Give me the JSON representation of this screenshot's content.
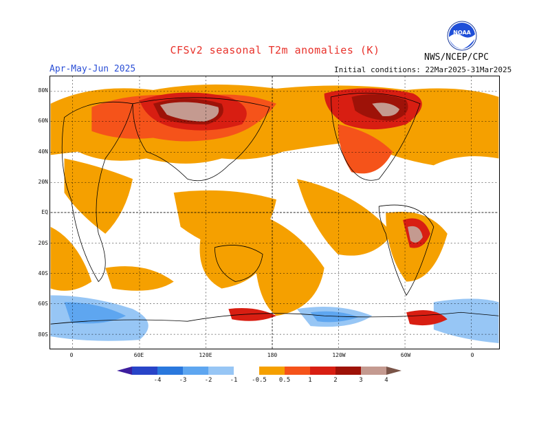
{
  "header": {
    "title": "CFSv2 seasonal T2m anomalies (K)",
    "period": "Apr-May-Jun 2025",
    "initial_conditions": "Initial conditions: 22Mar2025-31Mar2025",
    "agency": "NWS/NCEP/CPC",
    "logo_text": "NOAA",
    "logo_icon": "noaa-logo-icon"
  },
  "map": {
    "lat_labels": [
      "80N",
      "60N",
      "40N",
      "20N",
      "EQ",
      "20S",
      "40S",
      "60S",
      "80S"
    ],
    "lon_labels": [
      "0",
      "60E",
      "120E",
      "180",
      "120W",
      "60W",
      "0"
    ],
    "colors": {
      "pos_05": "#f5a000",
      "pos_1": "#f5531a",
      "pos_2": "#d81e12",
      "pos_3": "#9e1208",
      "pos_4": "#c49a90",
      "neg_05": "#97c6f5",
      "neg_1": "#5ea6f0",
      "neg_2": "#2a78dd"
    }
  },
  "legend": {
    "labels": [
      "-4",
      "-3",
      "-2",
      "-1",
      "-0.5",
      "0.5",
      "1",
      "2",
      "3",
      "4"
    ],
    "colors": [
      "#3d1e9e",
      "#2844c8",
      "#2a78dd",
      "#5ea6f0",
      "#97c6f5",
      "#ffffff",
      "#f5a000",
      "#f5531a",
      "#d81e12",
      "#9e1208",
      "#c49a90",
      "#7a5448"
    ]
  }
}
